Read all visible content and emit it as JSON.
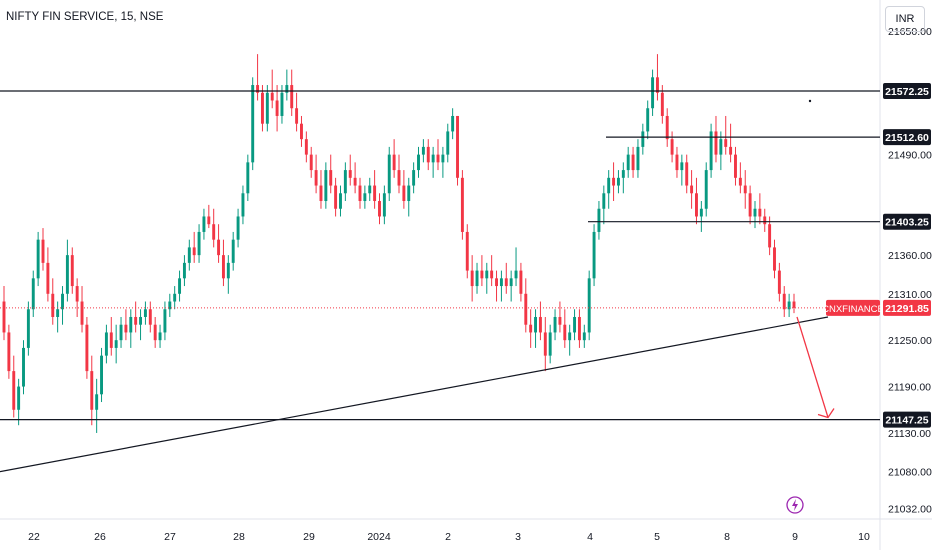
{
  "header": {
    "symbol_title": "NIFTY FIN SERVICE, 15, NSE",
    "currency_button": "INR"
  },
  "chart_data": {
    "type": "candlestick",
    "ylim": [
      21020,
      21690
    ],
    "y_ticks": [
      21650.0,
      21490.0,
      21360.0,
      21310.0,
      21250.0,
      21190.0,
      21130.0,
      21080.0,
      21032.0
    ],
    "x_ticks": [
      "22",
      "26",
      "27",
      "28",
      "29",
      "2024",
      "2",
      "3",
      "4",
      "5",
      "8",
      "9",
      "10"
    ],
    "horizontal_levels": [
      {
        "value": 21572.25,
        "label": "21572.25",
        "x_start": "22",
        "x_end": "axis"
      },
      {
        "value": 21512.6,
        "label": "21512.60",
        "x_start": "4",
        "x_end": "axis"
      },
      {
        "value": 21403.25,
        "label": "21403.25",
        "x_start": "4",
        "x_end": "axis"
      },
      {
        "value": 21147.25,
        "label": "21147.25",
        "x_start": "22",
        "x_end": "axis"
      }
    ],
    "trendline": {
      "from": {
        "x": "21",
        "y": 21080
      },
      "to": {
        "x": "9.5",
        "y": 21280
      }
    },
    "arrow": {
      "from": {
        "x": "9",
        "y": 21280
      },
      "to": {
        "x": "9.5",
        "y": 21150
      }
    },
    "current_price": {
      "symbol": "CNXFINANCE",
      "value": 21291.85,
      "label": "21291.85"
    },
    "up_color": "#089981",
    "down_color": "#f23645",
    "price_label_color": "#f23645",
    "candles": [
      [
        21300,
        21320,
        21250,
        21260
      ],
      [
        21260,
        21270,
        21200,
        21210
      ],
      [
        21210,
        21230,
        21150,
        21160
      ],
      [
        21160,
        21200,
        21140,
        21190
      ],
      [
        21190,
        21250,
        21180,
        21240
      ],
      [
        21240,
        21300,
        21230,
        21290
      ],
      [
        21290,
        21340,
        21280,
        21330
      ],
      [
        21330,
        21390,
        21320,
        21380
      ],
      [
        21380,
        21395,
        21340,
        21350
      ],
      [
        21350,
        21370,
        21300,
        21310
      ],
      [
        21310,
        21330,
        21270,
        21280
      ],
      [
        21280,
        21300,
        21260,
        21290
      ],
      [
        21290,
        21320,
        21270,
        21310
      ],
      [
        21310,
        21380,
        21300,
        21360
      ],
      [
        21360,
        21370,
        21310,
        21320
      ],
      [
        21320,
        21330,
        21280,
        21300
      ],
      [
        21300,
        21320,
        21260,
        21270
      ],
      [
        21270,
        21280,
        21200,
        21210
      ],
      [
        21210,
        21230,
        21140,
        21160
      ],
      [
        21160,
        21200,
        21130,
        21180
      ],
      [
        21180,
        21240,
        21170,
        21230
      ],
      [
        21230,
        21270,
        21220,
        21260
      ],
      [
        21260,
        21280,
        21230,
        21240
      ],
      [
        21240,
        21270,
        21220,
        21250
      ],
      [
        21250,
        21280,
        21240,
        21270
      ],
      [
        21270,
        21290,
        21250,
        21260
      ],
      [
        21260,
        21290,
        21240,
        21280
      ],
      [
        21280,
        21300,
        21260,
        21270
      ],
      [
        21270,
        21290,
        21250,
        21280
      ],
      [
        21280,
        21300,
        21270,
        21290
      ],
      [
        21290,
        21300,
        21260,
        21270
      ],
      [
        21270,
        21280,
        21240,
        21250
      ],
      [
        21250,
        21270,
        21240,
        21260
      ],
      [
        21260,
        21300,
        21250,
        21290
      ],
      [
        21290,
        21310,
        21280,
        21300
      ],
      [
        21300,
        21320,
        21290,
        21310
      ],
      [
        21310,
        21340,
        21300,
        21330
      ],
      [
        21330,
        21360,
        21320,
        21350
      ],
      [
        21350,
        21380,
        21340,
        21370
      ],
      [
        21370,
        21390,
        21350,
        21360
      ],
      [
        21360,
        21400,
        21350,
        21390
      ],
      [
        21390,
        21420,
        21380,
        21410
      ],
      [
        21410,
        21425,
        21395,
        21400
      ],
      [
        21400,
        21420,
        21370,
        21380
      ],
      [
        21380,
        21400,
        21350,
        21360
      ],
      [
        21360,
        21380,
        21320,
        21330
      ],
      [
        21330,
        21360,
        21310,
        21350
      ],
      [
        21350,
        21390,
        21340,
        21380
      ],
      [
        21380,
        21420,
        21370,
        21410
      ],
      [
        21410,
        21450,
        21400,
        21440
      ],
      [
        21440,
        21490,
        21430,
        21480
      ],
      [
        21480,
        21590,
        21470,
        21580
      ],
      [
        21580,
        21620,
        21560,
        21570
      ],
      [
        21570,
        21580,
        21520,
        21530
      ],
      [
        21530,
        21580,
        21520,
        21570
      ],
      [
        21570,
        21600,
        21550,
        21560
      ],
      [
        21560,
        21580,
        21520,
        21540
      ],
      [
        21540,
        21580,
        21530,
        21570
      ],
      [
        21570,
        21600,
        21560,
        21580
      ],
      [
        21580,
        21600,
        21540,
        21550
      ],
      [
        21550,
        21570,
        21520,
        21530
      ],
      [
        21530,
        21540,
        21500,
        21510
      ],
      [
        21510,
        21520,
        21480,
        21490
      ],
      [
        21490,
        21500,
        21460,
        21470
      ],
      [
        21470,
        21490,
        21440,
        21450
      ],
      [
        21450,
        21470,
        21420,
        21430
      ],
      [
        21430,
        21480,
        21420,
        21470
      ],
      [
        21470,
        21490,
        21440,
        21450
      ],
      [
        21450,
        21460,
        21410,
        21420
      ],
      [
        21420,
        21450,
        21410,
        21440
      ],
      [
        21440,
        21480,
        21430,
        21470
      ],
      [
        21470,
        21490,
        21450,
        21460
      ],
      [
        21460,
        21480,
        21440,
        21450
      ],
      [
        21450,
        21460,
        21420,
        21430
      ],
      [
        21430,
        21450,
        21420,
        21440
      ],
      [
        21440,
        21460,
        21430,
        21450
      ],
      [
        21450,
        21470,
        21420,
        21430
      ],
      [
        21430,
        21440,
        21400,
        21410
      ],
      [
        21410,
        21450,
        21400,
        21440
      ],
      [
        21440,
        21500,
        21430,
        21490
      ],
      [
        21490,
        21510,
        21460,
        21470
      ],
      [
        21470,
        21490,
        21440,
        21450
      ],
      [
        21450,
        21470,
        21420,
        21430
      ],
      [
        21430,
        21460,
        21410,
        21450
      ],
      [
        21450,
        21480,
        21440,
        21470
      ],
      [
        21470,
        21500,
        21460,
        21490
      ],
      [
        21490,
        21510,
        21480,
        21500
      ],
      [
        21500,
        21510,
        21470,
        21480
      ],
      [
        21480,
        21500,
        21460,
        21490
      ],
      [
        21490,
        21510,
        21470,
        21480
      ],
      [
        21480,
        21500,
        21460,
        21490
      ],
      [
        21490,
        21530,
        21480,
        21520
      ],
      [
        21520,
        21550,
        21510,
        21540
      ],
      [
        21540,
        21540,
        21450,
        21460
      ],
      [
        21460,
        21470,
        21380,
        21390
      ],
      [
        21390,
        21400,
        21330,
        21340
      ],
      [
        21340,
        21360,
        21300,
        21320
      ],
      [
        21320,
        21350,
        21310,
        21340
      ],
      [
        21340,
        21360,
        21320,
        21330
      ],
      [
        21330,
        21350,
        21310,
        21340
      ],
      [
        21340,
        21360,
        21320,
        21330
      ],
      [
        21330,
        21340,
        21300,
        21320
      ],
      [
        21320,
        21340,
        21300,
        21330
      ],
      [
        21330,
        21350,
        21310,
        21320
      ],
      [
        21320,
        21340,
        21300,
        21330
      ],
      [
        21330,
        21370,
        21320,
        21340
      ],
      [
        21340,
        21350,
        21300,
        21310
      ],
      [
        21310,
        21330,
        21260,
        21270
      ],
      [
        21270,
        21290,
        21240,
        21260
      ],
      [
        21260,
        21290,
        21240,
        21280
      ],
      [
        21280,
        21300,
        21250,
        21260
      ],
      [
        21260,
        21280,
        21210,
        21230
      ],
      [
        21230,
        21270,
        21220,
        21260
      ],
      [
        21260,
        21290,
        21250,
        21280
      ],
      [
        21280,
        21300,
        21260,
        21270
      ],
      [
        21270,
        21290,
        21240,
        21250
      ],
      [
        21250,
        21270,
        21230,
        21260
      ],
      [
        21260,
        21290,
        21250,
        21280
      ],
      [
        21280,
        21290,
        21240,
        21250
      ],
      [
        21250,
        21270,
        21240,
        21260
      ],
      [
        21260,
        21340,
        21250,
        21330
      ],
      [
        21330,
        21400,
        21320,
        21390
      ],
      [
        21390,
        21430,
        21380,
        21420
      ],
      [
        21420,
        21450,
        21400,
        21440
      ],
      [
        21440,
        21470,
        21420,
        21460
      ],
      [
        21460,
        21480,
        21430,
        21450
      ],
      [
        21450,
        21470,
        21440,
        21460
      ],
      [
        21460,
        21480,
        21440,
        21470
      ],
      [
        21470,
        21500,
        21460,
        21490
      ],
      [
        21490,
        21500,
        21460,
        21470
      ],
      [
        21470,
        21510,
        21460,
        21500
      ],
      [
        21500,
        21530,
        21490,
        21520
      ],
      [
        21520,
        21560,
        21510,
        21550
      ],
      [
        21550,
        21600,
        21540,
        21590
      ],
      [
        21590,
        21620,
        21560,
        21570
      ],
      [
        21570,
        21580,
        21530,
        21540
      ],
      [
        21540,
        21550,
        21500,
        21510
      ],
      [
        21510,
        21520,
        21480,
        21490
      ],
      [
        21490,
        21500,
        21460,
        21470
      ],
      [
        21470,
        21490,
        21450,
        21480
      ],
      [
        21480,
        21490,
        21440,
        21450
      ],
      [
        21450,
        21470,
        21420,
        21440
      ],
      [
        21440,
        21460,
        21400,
        21410
      ],
      [
        21410,
        21430,
        21390,
        21420
      ],
      [
        21420,
        21480,
        21410,
        21470
      ],
      [
        21470,
        21530,
        21460,
        21520
      ],
      [
        21520,
        21540,
        21480,
        21490
      ],
      [
        21490,
        21520,
        21470,
        21510
      ],
      [
        21510,
        21540,
        21490,
        21500
      ],
      [
        21500,
        21530,
        21480,
        21490
      ],
      [
        21490,
        21500,
        21450,
        21460
      ],
      [
        21460,
        21480,
        21440,
        21450
      ],
      [
        21450,
        21470,
        21420,
        21440
      ],
      [
        21440,
        21450,
        21400,
        21410
      ],
      [
        21410,
        21430,
        21395,
        21420
      ],
      [
        21420,
        21440,
        21400,
        21410
      ],
      [
        21410,
        21420,
        21390,
        21400
      ],
      [
        21400,
        21410,
        21360,
        21370
      ],
      [
        21370,
        21380,
        21330,
        21340
      ],
      [
        21340,
        21350,
        21300,
        21310
      ],
      [
        21310,
        21320,
        21280,
        21290
      ],
      [
        21290,
        21310,
        21280,
        21300
      ],
      [
        21300,
        21310,
        21285,
        21291.85
      ]
    ]
  }
}
